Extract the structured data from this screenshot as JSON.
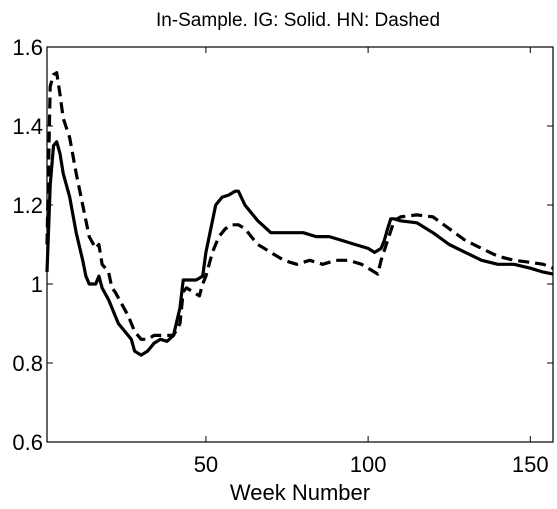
{
  "chart_data": {
    "type": "line",
    "title": "In-Sample. IG: Solid. HN: Dashed",
    "xlabel": "Week Number",
    "ylabel": "",
    "xlim": [
      1,
      157
    ],
    "ylim": [
      0.6,
      1.6
    ],
    "xticks": [
      50,
      100,
      150
    ],
    "xtick_labels": [
      "50",
      "100",
      "150"
    ],
    "yticks": [
      0.6,
      0.8,
      1.0,
      1.2,
      1.4,
      1.6
    ],
    "ytick_labels": [
      "0.6",
      "0.8",
      "1",
      "1.2",
      "1.4",
      "1.6"
    ],
    "grid": false,
    "legend": "none",
    "series": [
      {
        "style": "solid",
        "color": "#000000",
        "x": [
          1,
          2,
          3,
          4,
          5,
          6,
          8,
          10,
          12,
          13,
          14,
          16,
          17,
          18,
          20,
          21,
          22,
          23,
          25,
          27,
          28,
          30,
          32,
          34,
          36,
          38,
          40,
          42,
          43,
          44,
          45,
          47,
          49,
          50,
          51,
          53,
          55,
          57,
          59,
          60,
          62,
          64,
          66,
          68,
          70,
          74,
          80,
          84,
          88,
          92,
          96,
          100,
          102,
          104,
          105,
          106,
          107,
          108,
          110,
          115,
          120,
          125,
          130,
          135,
          140,
          145,
          150,
          154,
          157
        ],
        "y": [
          1.03,
          1.25,
          1.35,
          1.36,
          1.33,
          1.28,
          1.22,
          1.13,
          1.06,
          1.02,
          1.0,
          1.0,
          1.02,
          0.99,
          0.96,
          0.94,
          0.92,
          0.9,
          0.88,
          0.86,
          0.83,
          0.82,
          0.83,
          0.85,
          0.86,
          0.855,
          0.87,
          0.94,
          1.01,
          1.01,
          1.01,
          1.01,
          1.02,
          1.08,
          1.12,
          1.2,
          1.22,
          1.225,
          1.235,
          1.235,
          1.2,
          1.18,
          1.16,
          1.145,
          1.13,
          1.13,
          1.13,
          1.12,
          1.12,
          1.11,
          1.1,
          1.09,
          1.08,
          1.09,
          1.11,
          1.14,
          1.165,
          1.165,
          1.16,
          1.155,
          1.13,
          1.1,
          1.08,
          1.06,
          1.05,
          1.05,
          1.04,
          1.03,
          1.025
        ]
      },
      {
        "style": "dashed",
        "color": "#000000",
        "x": [
          1,
          2,
          3,
          4,
          5,
          6,
          8,
          10,
          12,
          14,
          16,
          17,
          18,
          20,
          21,
          22,
          24,
          26,
          28,
          30,
          32,
          34,
          36,
          38,
          40,
          42,
          43,
          44,
          46,
          48,
          49,
          50,
          52,
          54,
          56,
          58,
          60,
          62,
          64,
          66,
          68,
          70,
          74,
          78,
          82,
          86,
          90,
          94,
          98,
          102,
          103,
          104,
          106,
          108,
          110,
          115,
          120,
          125,
          130,
          135,
          140,
          145,
          150,
          154,
          157
        ],
        "y": [
          1.1,
          1.5,
          1.53,
          1.535,
          1.48,
          1.42,
          1.37,
          1.28,
          1.2,
          1.12,
          1.09,
          1.1,
          1.05,
          1.03,
          0.99,
          0.98,
          0.95,
          0.92,
          0.88,
          0.86,
          0.86,
          0.87,
          0.87,
          0.87,
          0.87,
          0.9,
          0.98,
          0.99,
          0.98,
          0.97,
          1.0,
          1.02,
          1.08,
          1.12,
          1.14,
          1.15,
          1.15,
          1.14,
          1.12,
          1.1,
          1.09,
          1.08,
          1.06,
          1.05,
          1.06,
          1.05,
          1.06,
          1.06,
          1.05,
          1.03,
          1.025,
          1.06,
          1.11,
          1.16,
          1.17,
          1.175,
          1.17,
          1.14,
          1.11,
          1.09,
          1.07,
          1.06,
          1.055,
          1.05,
          1.04
        ]
      }
    ]
  }
}
